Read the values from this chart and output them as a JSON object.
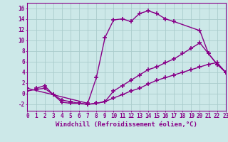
{
  "bg_color": "#cce8e8",
  "grid_color": "#aacccc",
  "line_color": "#880088",
  "marker": "+",
  "markersize": 4,
  "markeredgewidth": 1.2,
  "linewidth": 1.0,
  "xlabel": "Windchill (Refroidissement éolien,°C)",
  "xlabel_fontsize": 6.5,
  "tick_fontsize": 5.5,
  "ylabel_ticks": [
    -2,
    0,
    2,
    4,
    6,
    8,
    10,
    12,
    14,
    16
  ],
  "xtick_labels": [
    "0",
    "1",
    "2",
    "3",
    "4",
    "5",
    "6",
    "7",
    "8",
    "9",
    "10",
    "11",
    "12",
    "13",
    "14",
    "15",
    "16",
    "17",
    "18",
    "19",
    "20",
    "21",
    "22",
    "23"
  ],
  "ylim": [
    -3.2,
    17
  ],
  "xlim": [
    0,
    23
  ],
  "series": [
    {
      "x": [
        1,
        2,
        3,
        7,
        8,
        9,
        10,
        11,
        12,
        13,
        14,
        15,
        16,
        17,
        20,
        21,
        22,
        23
      ],
      "y": [
        1.0,
        1.5,
        -0.2,
        -1.8,
        3.0,
        10.5,
        13.8,
        14.0,
        13.5,
        15.0,
        15.5,
        15.0,
        14.0,
        13.5,
        11.8,
        7.5,
        5.5,
        4.0
      ]
    },
    {
      "x": [
        0,
        3,
        4,
        5,
        6,
        7,
        8,
        9,
        10,
        11,
        12,
        13,
        14,
        15,
        16,
        17,
        18,
        19,
        20,
        21,
        22,
        23
      ],
      "y": [
        1.0,
        -0.2,
        -1.6,
        -1.8,
        -1.8,
        -2.0,
        -1.8,
        -1.5,
        0.5,
        1.5,
        2.5,
        3.5,
        4.5,
        5.0,
        5.8,
        6.5,
        7.5,
        8.5,
        9.5,
        7.5,
        5.5,
        4.0
      ]
    },
    {
      "x": [
        0,
        1,
        2,
        3,
        4,
        5,
        6,
        7,
        8,
        9,
        10,
        11,
        12,
        13,
        14,
        15,
        16,
        17,
        18,
        19,
        20,
        21,
        22,
        23
      ],
      "y": [
        0.5,
        0.8,
        1.0,
        -0.2,
        -1.2,
        -1.5,
        -1.8,
        -2.0,
        -1.8,
        -1.5,
        -0.8,
        -0.2,
        0.5,
        1.0,
        1.8,
        2.5,
        3.0,
        3.5,
        4.0,
        4.5,
        5.0,
        5.5,
        5.8,
        4.0
      ]
    }
  ]
}
